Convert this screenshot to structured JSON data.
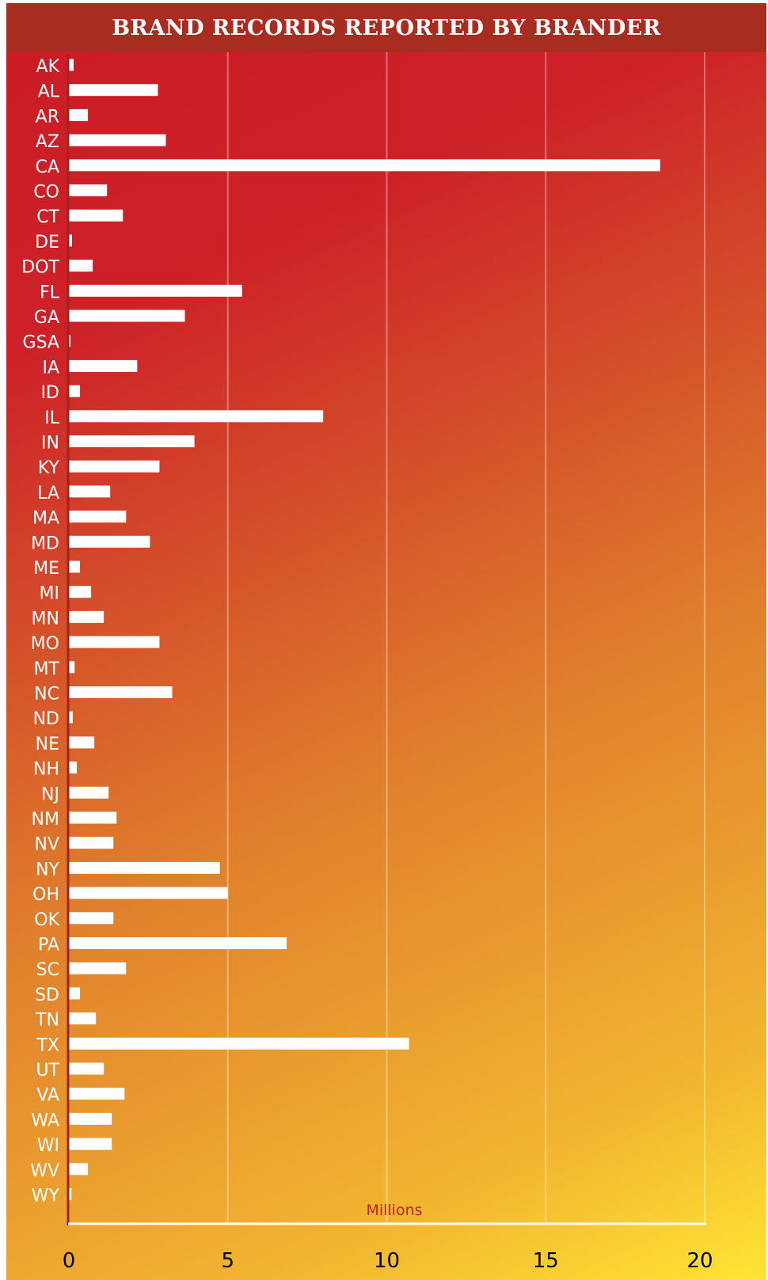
{
  "chart_data": {
    "type": "bar",
    "orientation": "horizontal",
    "title": "BRAND RECORDS REPORTED BY BRANDER",
    "unit_label": "Millions",
    "categories": [
      "AK",
      "AL",
      "AR",
      "AZ",
      "CA",
      "CO",
      "CT",
      "DE",
      "DOT",
      "FL",
      "GA",
      "GSA",
      "IA",
      "ID",
      "IL",
      "IN",
      "KY",
      "LA",
      "MA",
      "MD",
      "ME",
      "MI",
      "MN",
      "MO",
      "MT",
      "NC",
      "ND",
      "NE",
      "NH",
      "NJ",
      "NM",
      "NV",
      "NY",
      "OH",
      "OK",
      "PA",
      "SC",
      "SD",
      "TN",
      "TX",
      "UT",
      "VA",
      "WA",
      "WI",
      "WV",
      "WY"
    ],
    "values": [
      0.15,
      2.8,
      0.6,
      3.05,
      18.6,
      1.2,
      1.7,
      0.1,
      0.75,
      5.45,
      3.65,
      0.05,
      2.15,
      0.35,
      8.0,
      3.95,
      2.85,
      1.3,
      1.8,
      2.55,
      0.35,
      0.7,
      1.1,
      2.85,
      0.18,
      3.25,
      0.12,
      0.8,
      0.25,
      1.25,
      1.5,
      1.4,
      4.75,
      5.0,
      1.4,
      6.85,
      1.8,
      0.35,
      0.85,
      10.7,
      1.1,
      1.75,
      1.35,
      1.35,
      0.6,
      0.08
    ],
    "xlim": [
      0,
      20
    ],
    "xticks": [
      "0",
      "5",
      "10",
      "15",
      "20"
    ],
    "grid": true,
    "colors": {
      "bars": "#ffffff",
      "title_bar": "#a82c1f",
      "axis": "#ffffff",
      "left_axis": "#a0231c",
      "unit_label": "#b5271f",
      "gridline": "rgba(255,255,255,0.35)"
    }
  }
}
